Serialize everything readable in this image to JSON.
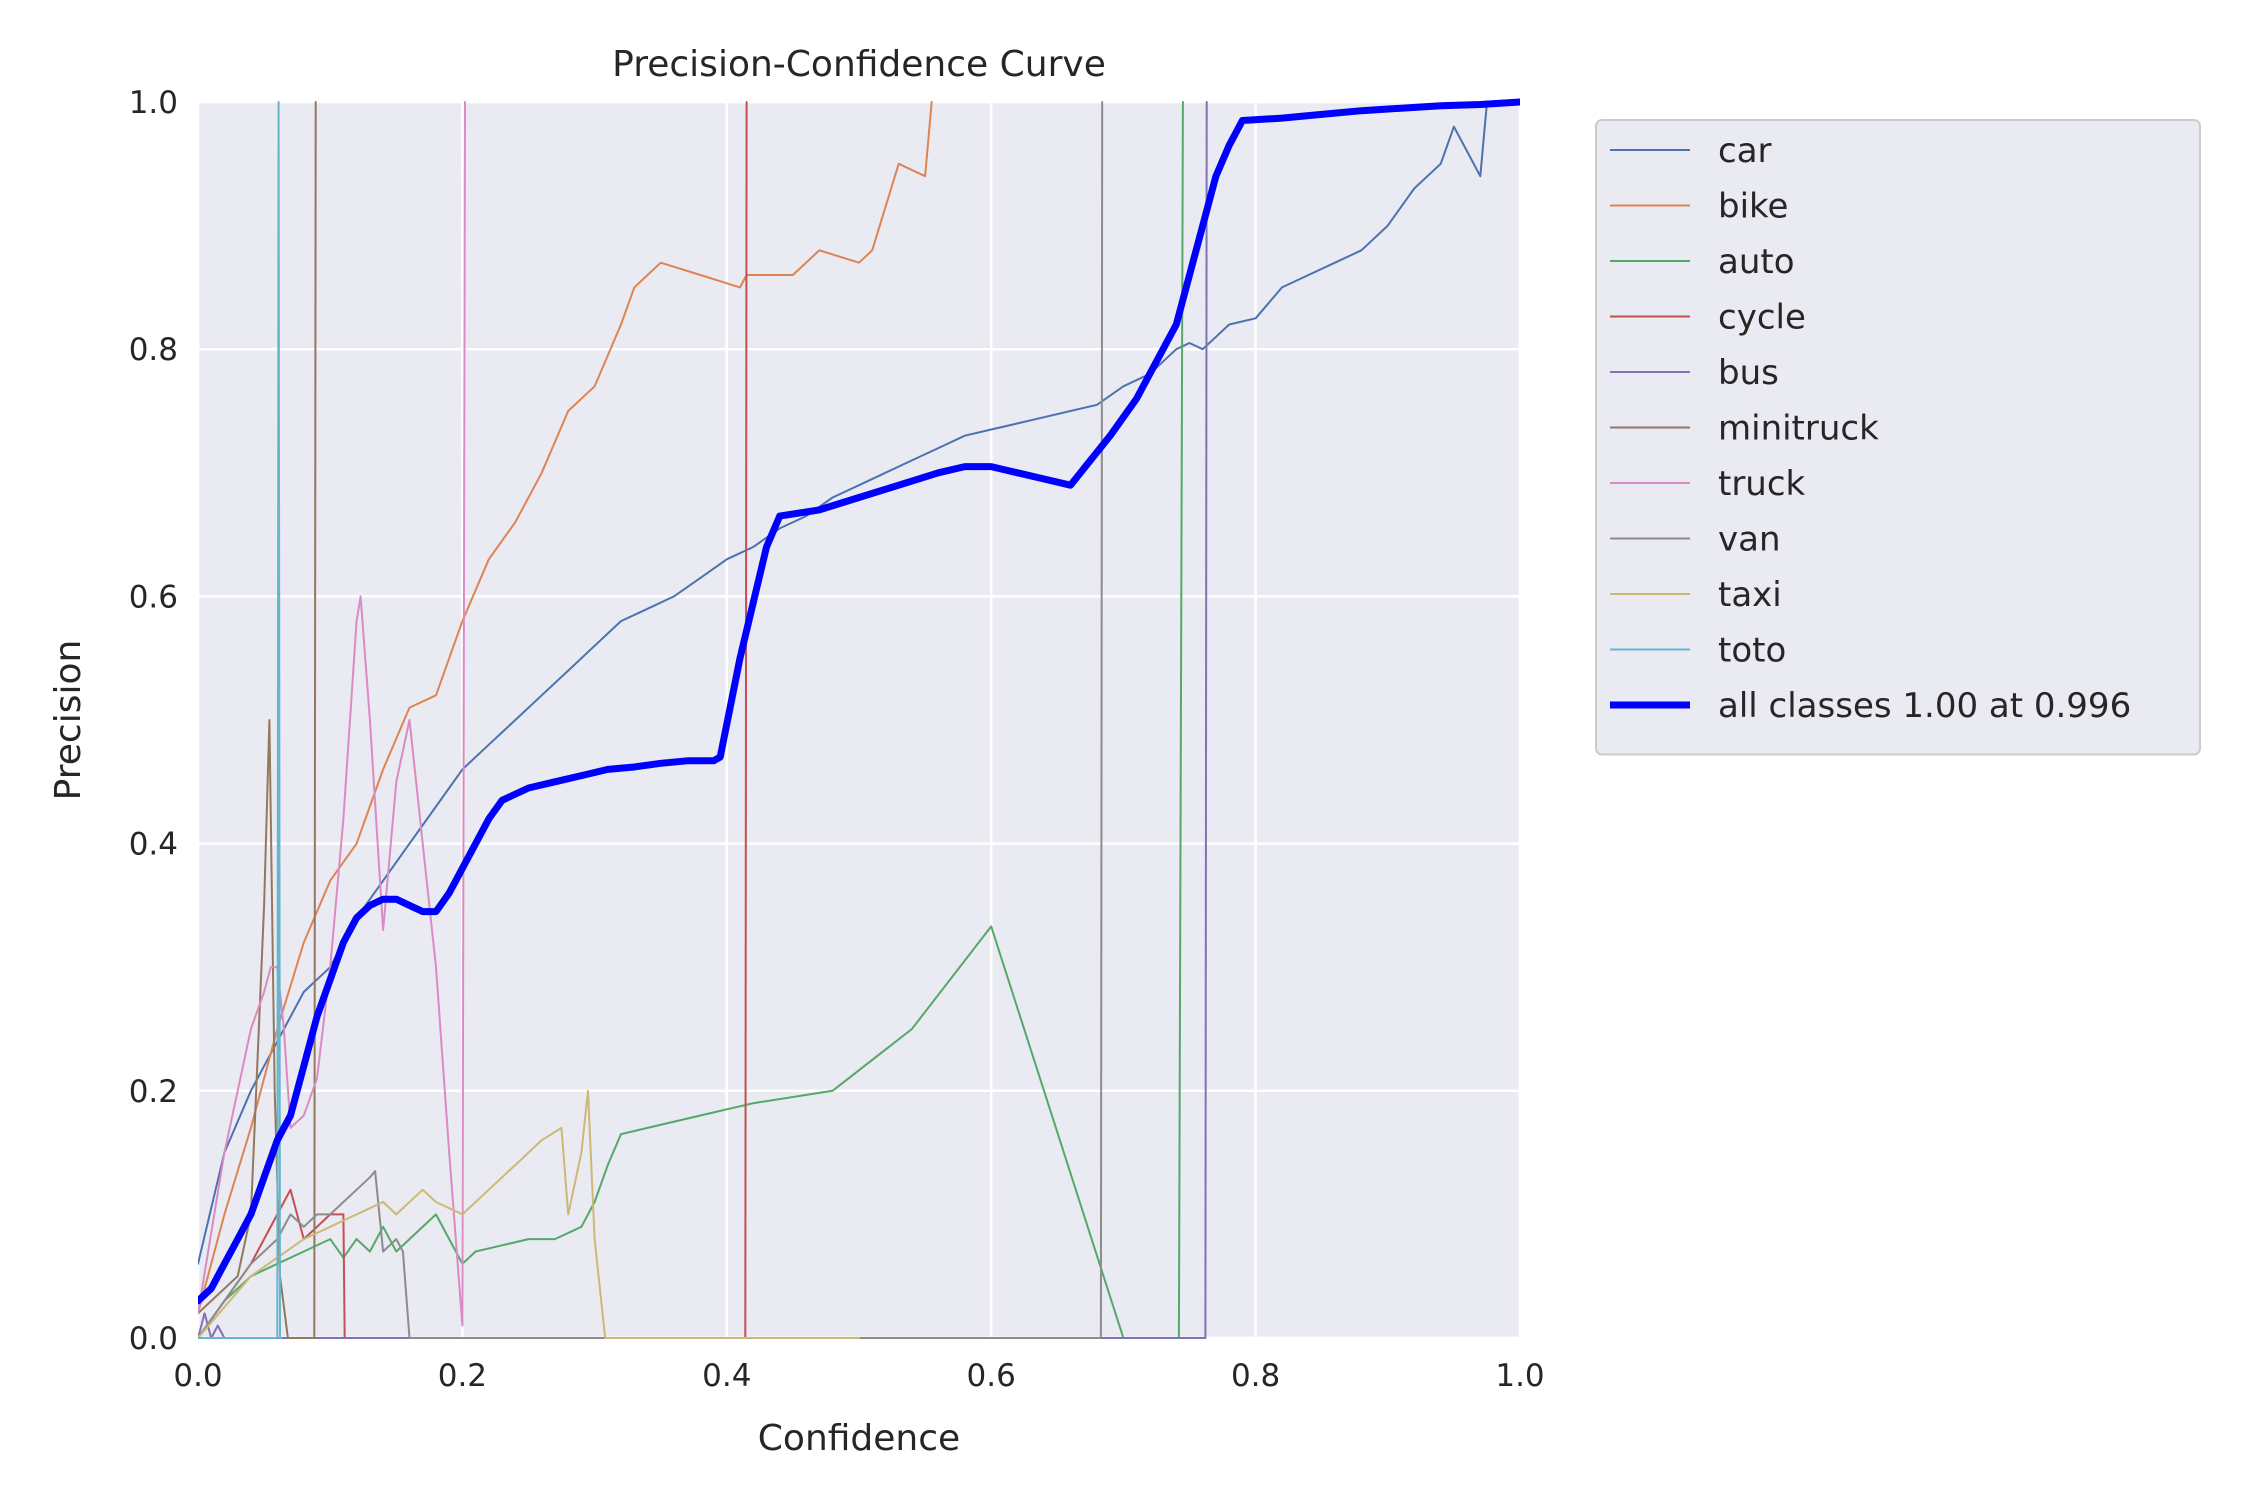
{
  "chart_data": {
    "type": "line",
    "title": "Precision-Confidence Curve",
    "xlabel": "Confidence",
    "ylabel": "Precision",
    "xlim": [
      0,
      1
    ],
    "ylim": [
      0,
      1
    ],
    "xticks": [
      "0.0",
      "0.2",
      "0.4",
      "0.6",
      "0.8",
      "1.0"
    ],
    "yticks": [
      "0.0",
      "0.2",
      "0.4",
      "0.6",
      "0.8",
      "1.0"
    ],
    "grid": true,
    "legend_position": "outside-top-right",
    "series": [
      {
        "name": "car",
        "color": "#4c72b0",
        "width": 2,
        "x": [
          0.0,
          0.02,
          0.04,
          0.06,
          0.08,
          0.1,
          0.12,
          0.14,
          0.16,
          0.18,
          0.2,
          0.22,
          0.24,
          0.26,
          0.28,
          0.3,
          0.32,
          0.34,
          0.36,
          0.38,
          0.4,
          0.42,
          0.44,
          0.46,
          0.48,
          0.5,
          0.52,
          0.54,
          0.56,
          0.58,
          0.6,
          0.62,
          0.64,
          0.66,
          0.68,
          0.7,
          0.72,
          0.74,
          0.75,
          0.76,
          0.78,
          0.8,
          0.82,
          0.84,
          0.86,
          0.88,
          0.9,
          0.92,
          0.94,
          0.95,
          0.96,
          0.97,
          0.975,
          0.98,
          1.0
        ],
        "y": [
          0.06,
          0.15,
          0.2,
          0.24,
          0.28,
          0.3,
          0.34,
          0.37,
          0.4,
          0.43,
          0.46,
          0.48,
          0.5,
          0.52,
          0.54,
          0.56,
          0.58,
          0.59,
          0.6,
          0.615,
          0.63,
          0.64,
          0.655,
          0.665,
          0.68,
          0.69,
          0.7,
          0.71,
          0.72,
          0.73,
          0.735,
          0.74,
          0.745,
          0.75,
          0.755,
          0.77,
          0.78,
          0.8,
          0.805,
          0.8,
          0.82,
          0.825,
          0.85,
          0.86,
          0.87,
          0.88,
          0.9,
          0.93,
          0.95,
          0.98,
          0.96,
          0.94,
          1.0,
          1.0,
          1.0
        ]
      },
      {
        "name": "bike",
        "color": "#dd8452",
        "width": 2,
        "x": [
          0.0,
          0.02,
          0.04,
          0.06,
          0.08,
          0.1,
          0.12,
          0.14,
          0.16,
          0.18,
          0.2,
          0.22,
          0.24,
          0.26,
          0.28,
          0.3,
          0.32,
          0.33,
          0.35,
          0.38,
          0.41,
          0.415,
          0.45,
          0.47,
          0.5,
          0.51,
          0.53,
          0.55,
          0.555
        ],
        "y": [
          0.02,
          0.1,
          0.17,
          0.25,
          0.32,
          0.37,
          0.4,
          0.46,
          0.51,
          0.52,
          0.58,
          0.63,
          0.66,
          0.7,
          0.75,
          0.77,
          0.82,
          0.85,
          0.87,
          0.86,
          0.85,
          0.86,
          0.86,
          0.88,
          0.87,
          0.88,
          0.95,
          0.94,
          1.0
        ]
      },
      {
        "name": "auto",
        "color": "#55a868",
        "width": 2,
        "x": [
          0.0,
          0.02,
          0.04,
          0.06,
          0.08,
          0.1,
          0.11,
          0.12,
          0.13,
          0.14,
          0.15,
          0.16,
          0.18,
          0.19,
          0.2,
          0.21,
          0.23,
          0.25,
          0.27,
          0.29,
          0.3,
          0.31,
          0.32,
          0.34,
          0.38,
          0.42,
          0.48,
          0.54,
          0.6,
          0.7,
          0.742,
          0.745
        ],
        "y": [
          0.0,
          0.03,
          0.05,
          0.06,
          0.07,
          0.08,
          0.065,
          0.08,
          0.07,
          0.09,
          0.07,
          0.08,
          0.1,
          0.08,
          0.06,
          0.07,
          0.075,
          0.08,
          0.08,
          0.09,
          0.11,
          0.14,
          0.165,
          0.17,
          0.18,
          0.19,
          0.2,
          0.25,
          0.333,
          0.0,
          0.0,
          1.0
        ]
      },
      {
        "name": "cycle",
        "color": "#c44e52",
        "width": 2,
        "x": [
          0.0,
          0.02,
          0.04,
          0.06,
          0.07,
          0.08,
          0.09,
          0.1,
          0.11,
          0.111,
          0.2,
          0.4,
          0.414,
          0.415
        ],
        "y": [
          0.0,
          0.03,
          0.06,
          0.1,
          0.12,
          0.08,
          0.09,
          0.1,
          0.1,
          0.0,
          0.0,
          0.0,
          0.0,
          1.0
        ]
      },
      {
        "name": "bus",
        "color": "#8172b3",
        "width": 2,
        "x": [
          0.0,
          0.005,
          0.01,
          0.015,
          0.02,
          0.1,
          0.5,
          0.762,
          0.763
        ],
        "y": [
          0.0,
          0.02,
          0.0,
          0.01,
          0.0,
          0.0,
          0.0,
          0.0,
          1.0
        ]
      },
      {
        "name": "minitruck",
        "color": "#937860",
        "width": 2,
        "x": [
          0.0,
          0.03,
          0.04,
          0.05,
          0.054,
          0.058,
          0.062,
          0.068,
          0.088,
          0.089
        ],
        "y": [
          0.02,
          0.05,
          0.1,
          0.35,
          0.5,
          0.2,
          0.05,
          0.0,
          0.0,
          1.0
        ]
      },
      {
        "name": "truck",
        "color": "#da8bc3",
        "width": 2,
        "x": [
          0.0,
          0.02,
          0.03,
          0.04,
          0.05,
          0.055,
          0.06,
          0.065,
          0.07,
          0.08,
          0.09,
          0.1,
          0.11,
          0.12,
          0.123,
          0.13,
          0.14,
          0.15,
          0.16,
          0.17,
          0.18,
          0.19,
          0.2,
          0.202
        ],
        "y": [
          0.02,
          0.15,
          0.2,
          0.25,
          0.28,
          0.3,
          0.3,
          0.25,
          0.17,
          0.18,
          0.21,
          0.3,
          0.42,
          0.58,
          0.6,
          0.5,
          0.33,
          0.45,
          0.5,
          0.4,
          0.3,
          0.15,
          0.01,
          1.0
        ]
      },
      {
        "name": "van",
        "color": "#8c8c8c",
        "width": 2,
        "x": [
          0.0,
          0.02,
          0.04,
          0.06,
          0.07,
          0.08,
          0.09,
          0.1,
          0.12,
          0.13,
          0.134,
          0.14,
          0.15,
          0.155,
          0.16,
          0.18,
          0.4,
          0.683,
          0.684
        ],
        "y": [
          0.0,
          0.03,
          0.06,
          0.08,
          0.1,
          0.09,
          0.1,
          0.1,
          0.12,
          0.13,
          0.135,
          0.07,
          0.08,
          0.07,
          0.0,
          0.0,
          0.0,
          0.0,
          1.0
        ]
      },
      {
        "name": "taxi",
        "color": "#ccb974",
        "width": 2,
        "x": [
          0.0,
          0.04,
          0.08,
          0.1,
          0.12,
          0.14,
          0.15,
          0.17,
          0.18,
          0.2,
          0.22,
          0.24,
          0.26,
          0.275,
          0.28,
          0.29,
          0.295,
          0.3,
          0.308,
          0.31,
          0.5
        ],
        "y": [
          0.0,
          0.05,
          0.08,
          0.09,
          0.1,
          0.11,
          0.1,
          0.12,
          0.11,
          0.1,
          0.12,
          0.14,
          0.16,
          0.17,
          0.1,
          0.15,
          0.2,
          0.08,
          0.0,
          0.0,
          0.0
        ]
      },
      {
        "name": "toto",
        "color": "#64b5cd",
        "width": 2,
        "x": [
          0.0,
          0.06,
          0.061,
          0.062,
          0.063
        ],
        "y": [
          0.0,
          0.0,
          1.0,
          0.0,
          0.0
        ]
      },
      {
        "name": "all classes 1.00 at 0.996",
        "color": "#0000ff",
        "width": 7,
        "x": [
          0.0,
          0.01,
          0.02,
          0.03,
          0.04,
          0.05,
          0.06,
          0.07,
          0.08,
          0.09,
          0.1,
          0.11,
          0.12,
          0.13,
          0.14,
          0.15,
          0.16,
          0.17,
          0.18,
          0.19,
          0.2,
          0.21,
          0.22,
          0.23,
          0.25,
          0.27,
          0.29,
          0.31,
          0.33,
          0.35,
          0.37,
          0.39,
          0.395,
          0.41,
          0.43,
          0.44,
          0.47,
          0.5,
          0.53,
          0.56,
          0.58,
          0.6,
          0.62,
          0.64,
          0.66,
          0.69,
          0.71,
          0.72,
          0.74,
          0.76,
          0.77,
          0.78,
          0.79,
          0.82,
          0.85,
          0.88,
          0.91,
          0.94,
          0.97,
          1.0
        ],
        "y": [
          0.03,
          0.04,
          0.06,
          0.08,
          0.1,
          0.13,
          0.16,
          0.18,
          0.22,
          0.26,
          0.29,
          0.32,
          0.34,
          0.35,
          0.355,
          0.355,
          0.35,
          0.345,
          0.345,
          0.36,
          0.38,
          0.4,
          0.42,
          0.435,
          0.445,
          0.45,
          0.455,
          0.46,
          0.462,
          0.465,
          0.467,
          0.467,
          0.47,
          0.55,
          0.64,
          0.665,
          0.67,
          0.68,
          0.69,
          0.7,
          0.705,
          0.705,
          0.7,
          0.695,
          0.69,
          0.73,
          0.76,
          0.78,
          0.82,
          0.9,
          0.94,
          0.965,
          0.985,
          0.987,
          0.99,
          0.993,
          0.995,
          0.997,
          0.998,
          1.0
        ]
      }
    ]
  }
}
